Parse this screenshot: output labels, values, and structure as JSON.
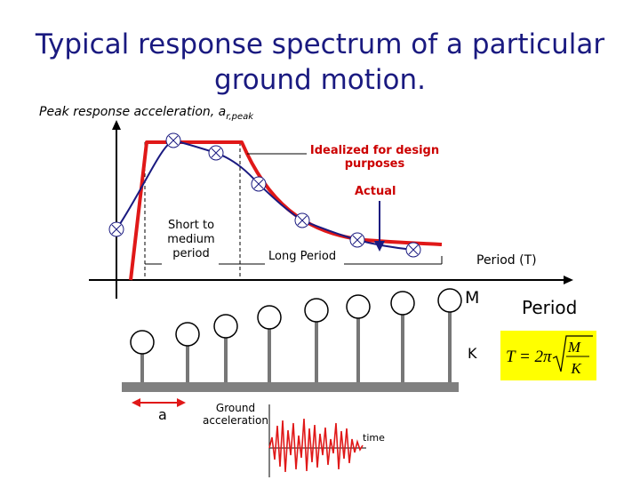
{
  "title": {
    "line1": "Typical response spectrum of a particular",
    "line2": "ground motion."
  },
  "spectrum": {
    "y_axis_label": "Peak response acceleration, a",
    "y_axis_subscript": "r,peak",
    "x_axis_label": "Period (T)",
    "idealized_label_line1": "Idealized for design",
    "idealized_label_line2": "purposes",
    "actual_label": "Actual",
    "short_label_line1": "Short to",
    "short_label_line2": "medium",
    "short_label_line3": "period",
    "long_label": "Long Period"
  },
  "oscillators": {
    "mass_label": "M",
    "stiffness_label": "K",
    "period_label": "Period",
    "formula": "T = 2π √(M/K)",
    "formula_lhs": "T = 2π",
    "formula_num": "M",
    "formula_den": "K"
  },
  "ground": {
    "accel_symbol": "a",
    "accel_label_line1": "Ground",
    "accel_label_line2": "acceleration",
    "time_label": "time"
  },
  "colors": {
    "title": "#1a1a80",
    "red": "#e01818",
    "accent_blue": "#1a1a80",
    "formula_bg": "#ffff00"
  }
}
